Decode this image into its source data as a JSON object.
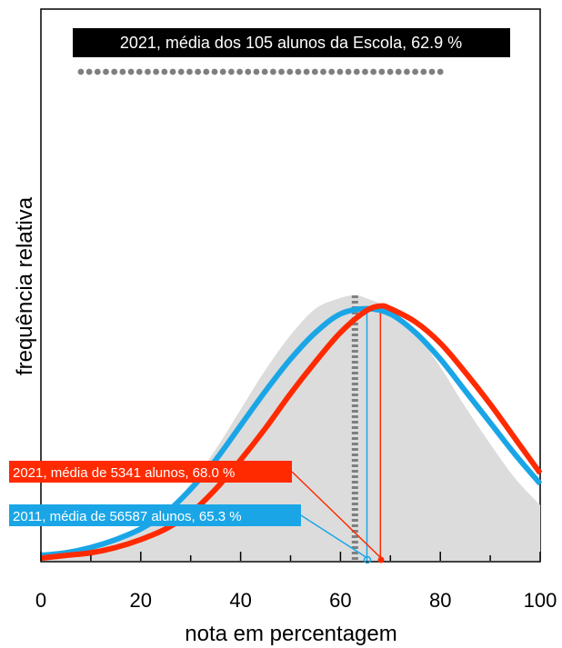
{
  "chart_data": {
    "type": "line",
    "title": "",
    "xlabel": "nota em percentagem",
    "ylabel": "frequência relativa",
    "xlim": [
      0,
      100
    ],
    "x_ticks": [
      0,
      20,
      40,
      60,
      80,
      100
    ],
    "grid": false,
    "colors": {
      "school": "#7f7f7f",
      "national_2021": "#ff2a00",
      "national_2011": "#1aa6e6",
      "background_area": "#dcdcdc"
    },
    "annotations": {
      "school": "2021, média dos 105 alunos da Escola, 62.9 %",
      "national_2021": "2021, média de 5341 alunos, 68.0 %",
      "national_2011": "2011, média de 56587 alunos, 65.3 %"
    },
    "series": [
      {
        "key": "school",
        "kind": "area",
        "x": [
          0,
          5,
          10,
          15,
          20,
          25,
          30,
          35,
          40,
          45,
          50,
          55,
          60,
          62.9,
          65,
          70,
          75,
          80,
          85,
          90,
          95,
          100
        ],
        "y": [
          0.01,
          0.02,
          0.04,
          0.07,
          0.12,
          0.19,
          0.29,
          0.42,
          0.57,
          0.72,
          0.85,
          0.95,
          0.99,
          1.0,
          0.99,
          0.95,
          0.86,
          0.73,
          0.58,
          0.44,
          0.31,
          0.21
        ],
        "mean": 62.9
      },
      {
        "key": "national_2011",
        "kind": "line",
        "x": [
          0,
          5,
          10,
          15,
          20,
          25,
          30,
          35,
          40,
          45,
          50,
          55,
          60,
          65.3,
          70,
          75,
          80,
          85,
          90,
          95,
          100
        ],
        "y": [
          0.02,
          0.03,
          0.05,
          0.08,
          0.12,
          0.18,
          0.27,
          0.38,
          0.51,
          0.64,
          0.76,
          0.86,
          0.93,
          0.95,
          0.93,
          0.86,
          0.76,
          0.64,
          0.52,
          0.4,
          0.29
        ],
        "mean": 65.3
      },
      {
        "key": "national_2021",
        "kind": "line",
        "x": [
          0,
          5,
          10,
          15,
          20,
          25,
          30,
          35,
          40,
          45,
          50,
          55,
          60,
          65,
          68,
          70,
          75,
          80,
          85,
          90,
          95,
          100
        ],
        "y": [
          0.01,
          0.02,
          0.03,
          0.05,
          0.08,
          0.12,
          0.18,
          0.27,
          0.38,
          0.5,
          0.63,
          0.75,
          0.86,
          0.94,
          0.96,
          0.95,
          0.9,
          0.82,
          0.71,
          0.59,
          0.46,
          0.33
        ],
        "mean": 68.0
      }
    ],
    "school_dots_range": [
      8,
      80
    ]
  }
}
